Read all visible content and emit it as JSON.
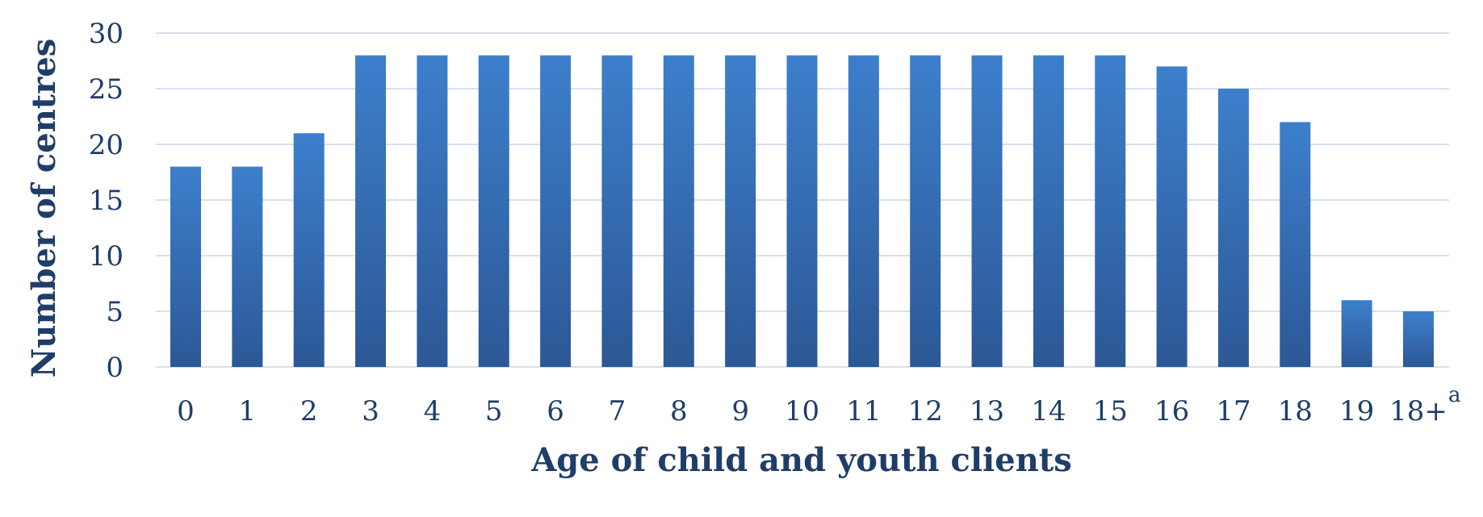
{
  "chart_data": {
    "type": "bar",
    "title": "",
    "xlabel": "Age of child and youth clients",
    "ylabel": "Number of centres",
    "categories": [
      "0",
      "1",
      "2",
      "3",
      "4",
      "5",
      "6",
      "7",
      "8",
      "9",
      "10",
      "11",
      "12",
      "13",
      "14",
      "15",
      "16",
      "17",
      "18",
      "19",
      "18+"
    ],
    "values": [
      18,
      18,
      21,
      28,
      28,
      28,
      28,
      28,
      28,
      28,
      28,
      28,
      28,
      28,
      28,
      28,
      27,
      25,
      22,
      6,
      5
    ],
    "ylim": [
      0,
      30
    ],
    "yticks": [
      "0",
      "5",
      "10",
      "15",
      "20",
      "25",
      "30"
    ],
    "grid": true,
    "legend": "none",
    "footnote_marker": "a",
    "colors": {
      "bar_top": "#3d7fcc",
      "bar_bottom": "#2c5896",
      "text": "#1f3d68",
      "grid": "#d6e1ee"
    }
  }
}
